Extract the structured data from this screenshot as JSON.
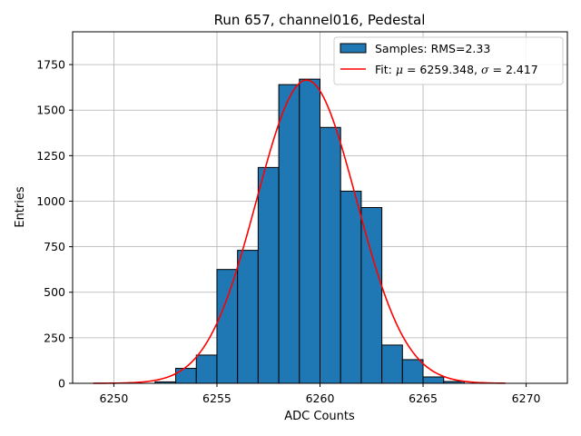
{
  "chart_data": {
    "type": "bar",
    "title": "Run 657, channel016, Pedestal",
    "xlabel": "ADC Counts",
    "ylabel": "Entries",
    "xlim": [
      6248.0,
      6272.0
    ],
    "ylim": [
      0,
      1930
    ],
    "grid": true,
    "legend_position": "top-right",
    "x_ticks": [
      6250,
      6255,
      6260,
      6265,
      6270
    ],
    "y_ticks": [
      0,
      250,
      500,
      750,
      1000,
      1250,
      1500,
      1750
    ],
    "histogram": {
      "name": "Samples: RMS=2.33",
      "color": "#1f77b4",
      "edge_color": "#000000",
      "bin_edges": [
        6249,
        6250,
        6251,
        6252,
        6253,
        6254,
        6255,
        6256,
        6257,
        6258,
        6259,
        6260,
        6261,
        6262,
        6263,
        6264,
        6265,
        6266,
        6267,
        6268,
        6269,
        6270,
        6271
      ],
      "counts": [
        0,
        0,
        0,
        8,
        82,
        155,
        625,
        730,
        1185,
        1640,
        1670,
        1405,
        1055,
        965,
        210,
        130,
        35,
        10,
        0,
        0,
        0,
        0
      ]
    },
    "fit": {
      "name": "Fit: μ = 6259.348, σ = 2.417",
      "label_text": "Fit: ",
      "mu_symbol": "μ",
      "mu_text": " = 6259.348, ",
      "sigma_symbol": "σ",
      "sigma_text": " = 2.417",
      "mu": 6259.348,
      "sigma": 2.417,
      "amplitude": 1665,
      "x_range": [
        6249,
        6269
      ],
      "color": "#ff0000"
    }
  }
}
